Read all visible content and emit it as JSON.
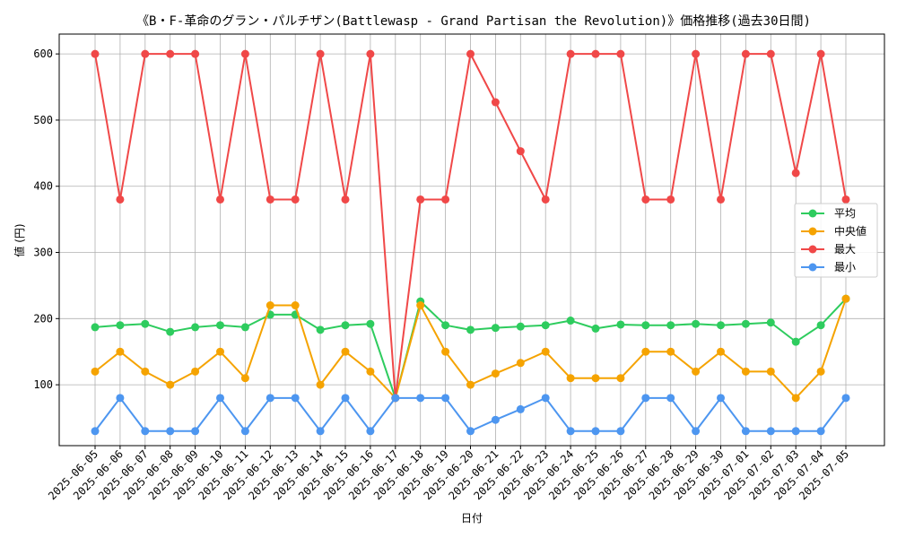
{
  "chart_data": {
    "type": "line",
    "title": "《B・F-革命のグラン・パルチザン(Battlewasp - Grand Partisan the Revolution)》価格推移(過去30日間)",
    "xlabel": "日付",
    "ylabel": "値 (円)",
    "ylim": [
      8,
      630
    ],
    "yticks": [
      100,
      200,
      300,
      400,
      500,
      600
    ],
    "grid": true,
    "legend_position": "center-right",
    "categories": [
      "2025-06-05",
      "2025-06-06",
      "2025-06-07",
      "2025-06-08",
      "2025-06-09",
      "2025-06-10",
      "2025-06-11",
      "2025-06-12",
      "2025-06-13",
      "2025-06-14",
      "2025-06-15",
      "2025-06-16",
      "2025-06-17",
      "2025-06-18",
      "2025-06-19",
      "2025-06-20",
      "2025-06-21",
      "2025-06-22",
      "2025-06-23",
      "2025-06-24",
      "2025-06-25",
      "2025-06-26",
      "2025-06-27",
      "2025-06-28",
      "2025-06-29",
      "2025-06-30",
      "2025-07-01",
      "2025-07-02",
      "2025-07-03",
      "2025-07-04",
      "2025-07-05"
    ],
    "series": [
      {
        "name": "平均",
        "color": "#2ecc5e",
        "values": [
          187,
          190,
          192,
          180,
          187,
          190,
          187,
          206,
          206,
          183,
          190,
          192,
          80,
          226,
          190,
          183,
          186,
          188,
          190,
          197,
          185,
          191,
          190,
          190,
          192,
          190,
          192,
          194,
          165,
          190,
          230
        ]
      },
      {
        "name": "中央値",
        "color": "#f5a300",
        "values": [
          120,
          150,
          120,
          100,
          120,
          150,
          110,
          220,
          220,
          100,
          150,
          120,
          80,
          220,
          150,
          100,
          117,
          133,
          150,
          110,
          110,
          110,
          150,
          150,
          120,
          150,
          120,
          120,
          80,
          120,
          230
        ]
      },
      {
        "name": "最大",
        "color": "#f04848",
        "values": [
          600,
          380,
          600,
          600,
          600,
          380,
          600,
          380,
          380,
          600,
          380,
          600,
          80,
          380,
          380,
          600,
          527,
          453,
          380,
          600,
          600,
          600,
          380,
          380,
          600,
          380,
          600,
          600,
          420,
          600,
          380
        ]
      },
      {
        "name": "最小",
        "color": "#4d96f0",
        "values": [
          30,
          80,
          30,
          30,
          30,
          80,
          30,
          80,
          80,
          30,
          80,
          30,
          80,
          80,
          80,
          30,
          47,
          63,
          80,
          30,
          30,
          30,
          80,
          80,
          30,
          80,
          30,
          30,
          30,
          30,
          80
        ]
      }
    ]
  }
}
